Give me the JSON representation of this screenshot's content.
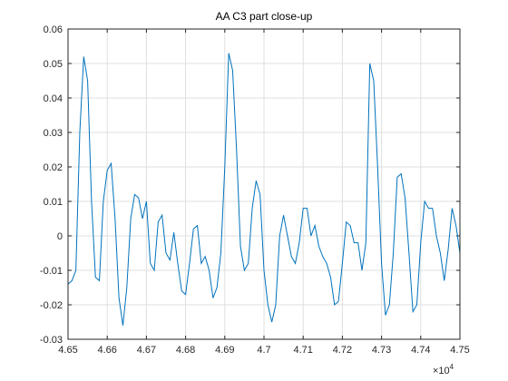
{
  "chart_data": {
    "type": "line",
    "title": "AA C3 part close-up",
    "x": [
      46500,
      46510,
      46520,
      46530,
      46540,
      46550,
      46560,
      46570,
      46580,
      46590,
      46600,
      46610,
      46620,
      46630,
      46640,
      46650,
      46660,
      46670,
      46680,
      46690,
      46700,
      46710,
      46720,
      46730,
      46740,
      46750,
      46760,
      46770,
      46780,
      46790,
      46800,
      46810,
      46820,
      46830,
      46840,
      46850,
      46860,
      46870,
      46880,
      46890,
      46900,
      46910,
      46920,
      46930,
      46940,
      46950,
      46960,
      46970,
      46980,
      46990,
      47000,
      47010,
      47020,
      47030,
      47040,
      47050,
      47060,
      47070,
      47080,
      47090,
      47100,
      47110,
      47120,
      47130,
      47140,
      47150,
      47160,
      47170,
      47180,
      47190,
      47200,
      47210,
      47220,
      47230,
      47240,
      47250,
      47260,
      47270,
      47280,
      47290,
      47300,
      47310,
      47320,
      47330,
      47340,
      47350,
      47360,
      47370,
      47380,
      47390,
      47400,
      47410,
      47420,
      47430,
      47440,
      47450,
      47460,
      47470,
      47480,
      47490,
      47500
    ],
    "series": [
      {
        "color": "#0072bd",
        "values": [
          -0.014,
          -0.013,
          -0.01,
          0.03,
          0.052,
          0.045,
          0.01,
          -0.012,
          -0.013,
          0.01,
          0.019,
          0.021,
          0.005,
          -0.018,
          -0.026,
          -0.015,
          0.005,
          0.012,
          0.011,
          0.005,
          0.01,
          -0.008,
          -0.01,
          0.004,
          0.006,
          -0.005,
          -0.007,
          0.001,
          -0.008,
          -0.016,
          -0.017,
          -0.008,
          0.002,
          0.003,
          -0.008,
          -0.006,
          -0.01,
          -0.018,
          -0.015,
          -0.005,
          0.02,
          0.053,
          0.048,
          0.025,
          -0.003,
          -0.01,
          -0.008,
          0.008,
          0.016,
          0.012,
          -0.01,
          -0.02,
          -0.025,
          -0.02,
          0.0,
          0.006,
          0.0,
          -0.006,
          -0.008,
          -0.002,
          0.008,
          0.008,
          0.0,
          0.003,
          -0.003,
          -0.006,
          -0.008,
          -0.012,
          -0.02,
          -0.019,
          -0.008,
          0.004,
          0.003,
          -0.002,
          -0.002,
          -0.01,
          -0.002,
          0.05,
          0.045,
          0.02,
          -0.008,
          -0.023,
          -0.02,
          -0.005,
          0.017,
          0.018,
          0.011,
          -0.005,
          -0.022,
          -0.02,
          -0.002,
          0.01,
          0.008,
          0.008,
          0.0,
          -0.005,
          -0.013,
          -0.004,
          0.008,
          0.003,
          -0.005
        ]
      }
    ],
    "xlim": [
      46500,
      47500
    ],
    "xticks": [
      {
        "value": 46500,
        "label": "4.65"
      },
      {
        "value": 46600,
        "label": "4.66"
      },
      {
        "value": 46700,
        "label": "4.67"
      },
      {
        "value": 46800,
        "label": "4.68"
      },
      {
        "value": 46900,
        "label": "4.69"
      },
      {
        "value": 47000,
        "label": "4.7"
      },
      {
        "value": 47100,
        "label": "4.71"
      },
      {
        "value": 47200,
        "label": "4.72"
      },
      {
        "value": 47300,
        "label": "4.73"
      },
      {
        "value": 47400,
        "label": "4.74"
      },
      {
        "value": 47500,
        "label": "4.75"
      }
    ],
    "x_multiplier": {
      "base": "×10",
      "exponent": "4"
    },
    "ylim": [
      -0.03,
      0.06
    ],
    "yticks": [
      -0.03,
      -0.02,
      -0.01,
      0,
      0.01,
      0.02,
      0.03,
      0.04,
      0.05,
      0.06
    ],
    "grid": true
  }
}
